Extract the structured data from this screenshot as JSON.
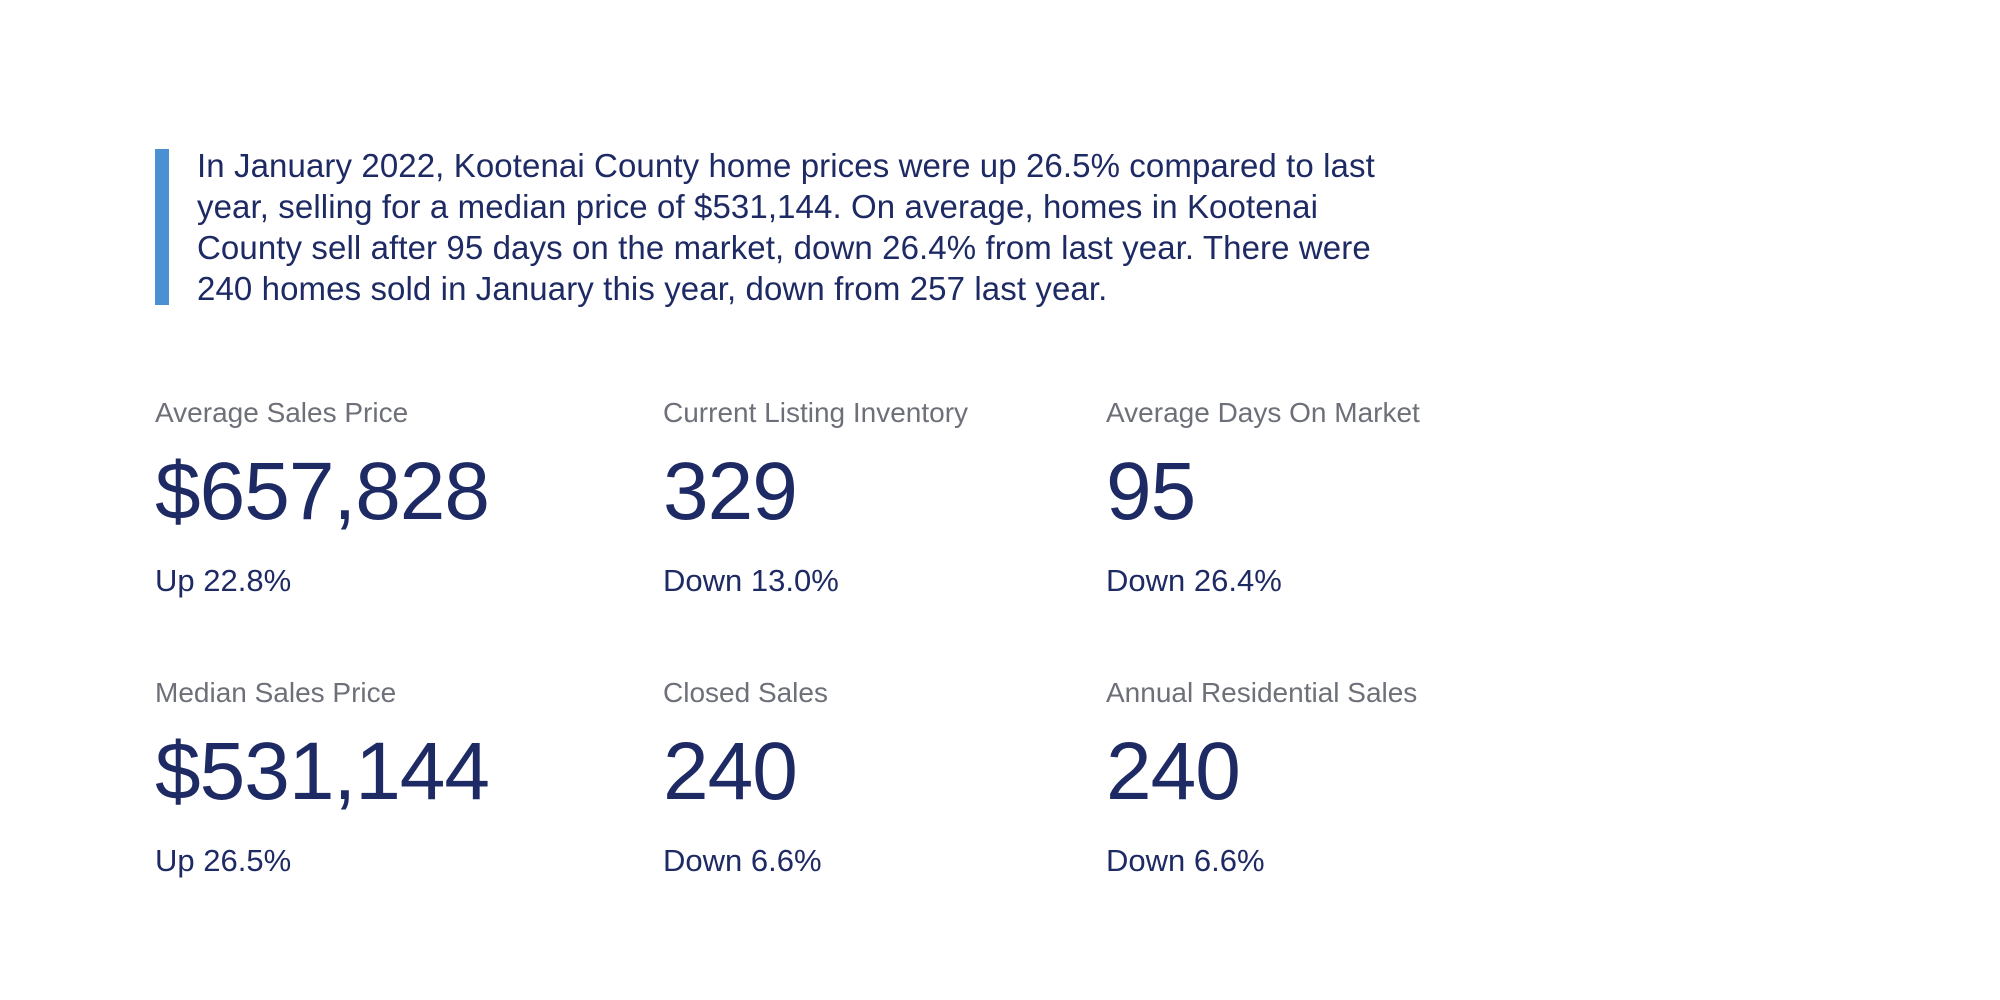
{
  "summary": {
    "text": "In January 2022, Kootenai County home prices were up 26.5% compared to last year, selling for a median price of $531,144. On average, homes in Kootenai County sell after 95 days on the market, down 26.4% from last year. There were 240 homes sold in January this year, down from 257 last year."
  },
  "stats": [
    {
      "label": "Average Sales Price",
      "value": "$657,828",
      "change": "Up 22.8%"
    },
    {
      "label": "Current Listing Inventory",
      "value": "329",
      "change": "Down 13.0%"
    },
    {
      "label": "Average Days On Market",
      "value": "95",
      "change": "Down 26.4%"
    },
    {
      "label": "Median Sales Price",
      "value": "$531,144",
      "change": "Up 26.5%"
    },
    {
      "label": "Closed Sales",
      "value": "240",
      "change": "Down 6.6%"
    },
    {
      "label": "Annual Residential Sales",
      "value": "240",
      "change": "Down 6.6%"
    }
  ],
  "colors": {
    "accent_bar": "#4a90d2",
    "navy_text": "#1e2a63",
    "label_gray": "#6d7078",
    "background": "#ffffff"
  }
}
